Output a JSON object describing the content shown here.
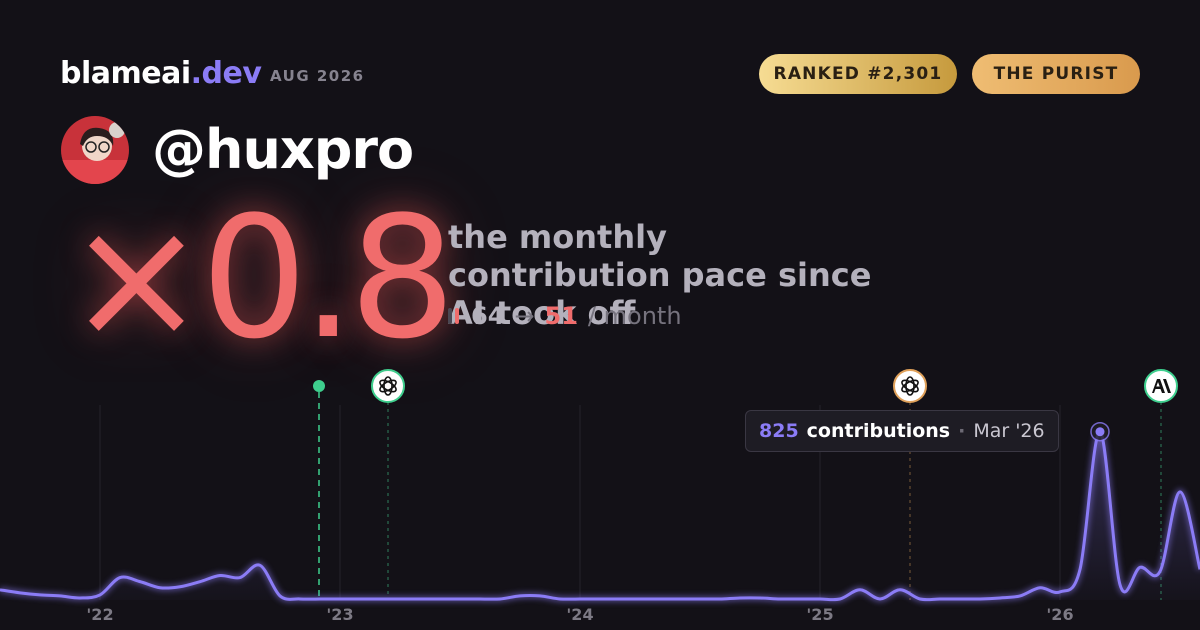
{
  "header": {
    "brand": "blameai",
    "brand_suffix": ".dev",
    "date": "AUG 2026",
    "rank": "RANKED #2,301",
    "persona": "THE PURIST",
    "handle": "@huxpro"
  },
  "headline": {
    "multiplier": "×0.8",
    "description": "the monthly contribution pace since AI took off",
    "before": 64,
    "arrow": "→",
    "after": 51,
    "unit": "/ month"
  },
  "chart_data": {
    "type": "line",
    "categories": [
      null,
      null,
      null,
      null,
      null,
      "'22",
      null,
      null,
      null,
      null,
      null,
      null,
      null,
      null,
      null,
      null,
      null,
      "'23",
      null,
      null,
      null,
      null,
      null,
      null,
      null,
      null,
      null,
      null,
      null,
      "'24",
      null,
      null,
      null,
      null,
      null,
      null,
      null,
      null,
      null,
      null,
      null,
      "'25",
      null,
      null,
      null,
      null,
      null,
      null,
      null,
      null,
      null,
      null,
      null,
      "'26",
      null,
      null,
      null,
      null,
      null,
      null,
      null
    ],
    "series": [
      {
        "name": "contributions",
        "color": "#8b7cf6",
        "values": [
          50,
          35,
          25,
          20,
          10,
          25,
          110,
          90,
          60,
          65,
          90,
          120,
          110,
          170,
          20,
          5,
          5,
          5,
          5,
          5,
          5,
          5,
          5,
          5,
          5,
          5,
          20,
          20,
          5,
          5,
          5,
          5,
          5,
          5,
          5,
          5,
          5,
          10,
          10,
          5,
          5,
          5,
          5,
          50,
          5,
          50,
          5,
          5,
          5,
          5,
          10,
          20,
          60,
          40,
          150,
          825,
          75,
          160,
          140,
          530,
          150
        ]
      }
    ],
    "ylim": [
      0,
      1000
    ],
    "tooltip": {
      "separator": "·",
      "date": "Mar '26"
    }
  }
}
